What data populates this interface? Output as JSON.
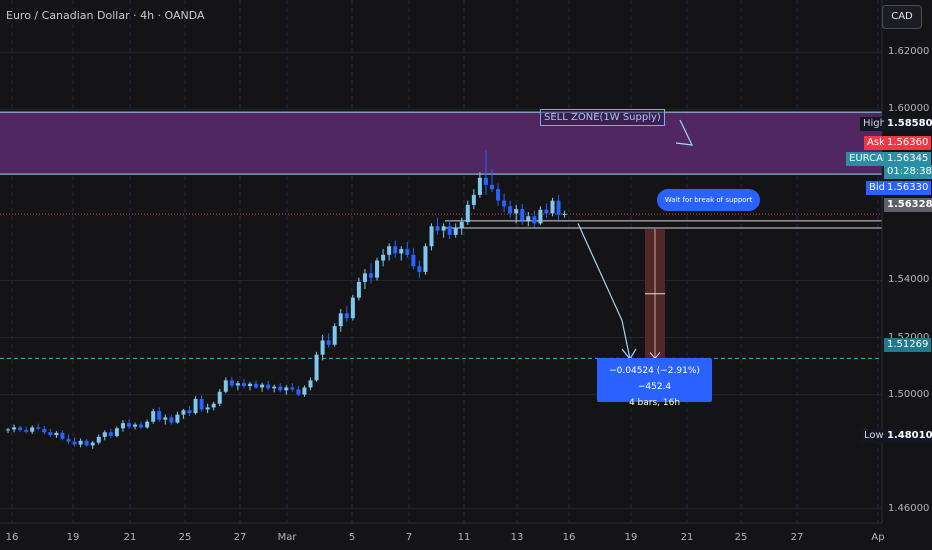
{
  "header": {
    "symbol_title": "Euro / Canadian Dollar · 4h · OANDA"
  },
  "currency_button": "CAD",
  "price_axis": {
    "ticks": [
      "1.62000",
      "1.60000",
      "1.54000",
      "1.52000",
      "1.50000",
      "1.46000"
    ],
    "tick_values": [
      1.62,
      1.6,
      1.54,
      1.52,
      1.5,
      1.46
    ]
  },
  "time_axis": {
    "labels": [
      "16",
      "19",
      "21",
      "25",
      "27",
      "Mar",
      "5",
      "7",
      "11",
      "13",
      "16",
      "19",
      "21",
      "25",
      "27",
      "Ap"
    ]
  },
  "price_tags": {
    "high": {
      "label": "High",
      "value": "1.58580",
      "color": "#131722"
    },
    "ask": {
      "label": "Ask",
      "value": "1.56360",
      "color": "#f23645"
    },
    "symbol": {
      "label": "EURCAD",
      "value": "1.56345",
      "countdown": "01:28:38",
      "color": "#2a8fa6"
    },
    "bid": {
      "label": "Bid",
      "value": "1.56330",
      "color": "#2962ff"
    },
    "last": {
      "value": "1.56328",
      "color": "#5d606b"
    },
    "target": {
      "value": "1.51269",
      "color": "#1f7a8c"
    },
    "low": {
      "label": "Low",
      "value": "1.48010",
      "color": "#131722"
    }
  },
  "annotations": {
    "sell_zone_label": "SELL ZONE(1W Supply)",
    "wait_label": "Wait for break of support",
    "measure_line1": "−0.04524 (−2.91%) −452.4",
    "measure_line2": "4 bars, 16h"
  },
  "colors": {
    "bullish": "#7ec8f0",
    "bearish": "#2962ff",
    "sell_zone": "#5a2a6e",
    "zone_line": "#9fd8f2",
    "target_line": "#2bb5c9"
  },
  "chart_data": {
    "type": "candlestick",
    "title": "Euro / Canadian Dollar · 4h · OANDA",
    "ylim": [
      1.455,
      1.632
    ],
    "x_labels": [
      "16",
      "19",
      "21",
      "25",
      "27",
      "Mar",
      "5",
      "7",
      "11",
      "13",
      "16",
      "19",
      "21",
      "25",
      "27",
      "Ap"
    ],
    "sell_zone": [
      1.5773,
      1.599
    ],
    "support_lines": [
      1.5609,
      1.5584
    ],
    "target_level": 1.51269,
    "last_price": 1.56328,
    "candles": [
      [
        1.4875,
        1.4883,
        1.4865,
        1.4878
      ],
      [
        1.4878,
        1.4895,
        1.4868,
        1.4885
      ],
      [
        1.4885,
        1.489,
        1.487,
        1.4876
      ],
      [
        1.4876,
        1.4888,
        1.4864,
        1.487
      ],
      [
        1.487,
        1.4892,
        1.4862,
        1.4885
      ],
      [
        1.4885,
        1.4898,
        1.4875,
        1.488
      ],
      [
        1.488,
        1.489,
        1.486,
        1.4868
      ],
      [
        1.4868,
        1.488,
        1.4852,
        1.4858
      ],
      [
        1.4858,
        1.4872,
        1.4848,
        1.4866
      ],
      [
        1.4866,
        1.4875,
        1.484,
        1.4845
      ],
      [
        1.4845,
        1.486,
        1.4828,
        1.4835
      ],
      [
        1.4835,
        1.485,
        1.4818,
        1.4825
      ],
      [
        1.4825,
        1.4846,
        1.4815,
        1.4838
      ],
      [
        1.4838,
        1.4845,
        1.4818,
        1.4822
      ],
      [
        1.4822,
        1.4838,
        1.481,
        1.4832
      ],
      [
        1.4832,
        1.486,
        1.4825,
        1.4852
      ],
      [
        1.4852,
        1.4875,
        1.484,
        1.4868
      ],
      [
        1.4868,
        1.488,
        1.4848,
        1.4855
      ],
      [
        1.4855,
        1.4888,
        1.485,
        1.4882
      ],
      [
        1.4882,
        1.491,
        1.487,
        1.49
      ],
      [
        1.49,
        1.4912,
        1.488,
        1.4888
      ],
      [
        1.4888,
        1.4902,
        1.4878,
        1.4895
      ],
      [
        1.4895,
        1.4905,
        1.488,
        1.4885
      ],
      [
        1.4885,
        1.4912,
        1.488,
        1.4905
      ],
      [
        1.4905,
        1.495,
        1.4898,
        1.4942
      ],
      [
        1.4942,
        1.4955,
        1.4905,
        1.4912
      ],
      [
        1.4912,
        1.493,
        1.4895,
        1.492
      ],
      [
        1.492,
        1.493,
        1.4895,
        1.4902
      ],
      [
        1.4902,
        1.494,
        1.4898,
        1.493
      ],
      [
        1.493,
        1.495,
        1.4915,
        1.4945
      ],
      [
        1.4945,
        1.496,
        1.4925,
        1.4935
      ],
      [
        1.4935,
        1.4995,
        1.493,
        1.4985
      ],
      [
        1.4985,
        1.4998,
        1.494,
        1.4948
      ],
      [
        1.4948,
        1.4968,
        1.4935,
        1.4955
      ],
      [
        1.4955,
        1.4975,
        1.4945,
        1.4968
      ],
      [
        1.4968,
        1.502,
        1.496,
        1.501
      ],
      [
        1.501,
        1.506,
        1.5005,
        1.505
      ],
      [
        1.505,
        1.5062,
        1.5025,
        1.5032
      ],
      [
        1.5032,
        1.5048,
        1.5015,
        1.504
      ],
      [
        1.504,
        1.5055,
        1.5022,
        1.503
      ],
      [
        1.503,
        1.5045,
        1.5015,
        1.5038
      ],
      [
        1.5038,
        1.505,
        1.502,
        1.5025
      ],
      [
        1.5025,
        1.5042,
        1.501,
        1.5035
      ],
      [
        1.5035,
        1.5048,
        1.5015,
        1.5022
      ],
      [
        1.5022,
        1.5035,
        1.5008,
        1.5028
      ],
      [
        1.5028,
        1.504,
        1.5008,
        1.5015
      ],
      [
        1.5015,
        1.5032,
        1.5,
        1.5025
      ],
      [
        1.5025,
        1.504,
        1.501,
        1.5018
      ],
      [
        1.5018,
        1.503,
        1.4995,
        1.5
      ],
      [
        1.5,
        1.5032,
        1.4992,
        1.5025
      ],
      [
        1.5025,
        1.506,
        1.5015,
        1.505
      ],
      [
        1.505,
        1.515,
        1.5045,
        1.514
      ],
      [
        1.514,
        1.521,
        1.512,
        1.519
      ],
      [
        1.519,
        1.5215,
        1.5165,
        1.5175
      ],
      [
        1.5175,
        1.525,
        1.5168,
        1.524
      ],
      [
        1.524,
        1.53,
        1.522,
        1.5285
      ],
      [
        1.5285,
        1.531,
        1.5255,
        1.5268
      ],
      [
        1.5268,
        1.535,
        1.526,
        1.534
      ],
      [
        1.534,
        1.541,
        1.533,
        1.5395
      ],
      [
        1.5395,
        1.544,
        1.537,
        1.5425
      ],
      [
        1.5425,
        1.546,
        1.539,
        1.541
      ],
      [
        1.541,
        1.548,
        1.54,
        1.547
      ],
      [
        1.547,
        1.551,
        1.545,
        1.549
      ],
      [
        1.549,
        1.553,
        1.547,
        1.552
      ],
      [
        1.552,
        1.554,
        1.548,
        1.5495
      ],
      [
        1.5495,
        1.552,
        1.547,
        1.551
      ],
      [
        1.551,
        1.5535,
        1.548,
        1.549
      ],
      [
        1.549,
        1.5515,
        1.544,
        1.545
      ],
      [
        1.545,
        1.547,
        1.541,
        1.543
      ],
      [
        1.543,
        1.553,
        1.542,
        1.552
      ],
      [
        1.552,
        1.56,
        1.5505,
        1.559
      ],
      [
        1.559,
        1.562,
        1.556,
        1.5575
      ],
      [
        1.5575,
        1.56,
        1.555,
        1.559
      ],
      [
        1.559,
        1.561,
        1.5545,
        1.556
      ],
      [
        1.556,
        1.56,
        1.555,
        1.5585
      ],
      [
        1.5585,
        1.562,
        1.556,
        1.5605
      ],
      [
        1.5605,
        1.568,
        1.5595,
        1.5665
      ],
      [
        1.5665,
        1.572,
        1.565,
        1.57
      ],
      [
        1.57,
        1.578,
        1.569,
        1.576
      ],
      [
        1.576,
        1.5858,
        1.57,
        1.5735
      ],
      [
        1.5735,
        1.579,
        1.571,
        1.572
      ],
      [
        1.572,
        1.574,
        1.566,
        1.568
      ],
      [
        1.568,
        1.5705,
        1.564,
        1.566
      ],
      [
        1.566,
        1.568,
        1.562,
        1.5635
      ],
      [
        1.5635,
        1.5665,
        1.56,
        1.565
      ],
      [
        1.565,
        1.5668,
        1.5595,
        1.561
      ],
      [
        1.561,
        1.564,
        1.559,
        1.5625
      ],
      [
        1.5625,
        1.5645,
        1.5585,
        1.56
      ],
      [
        1.56,
        1.566,
        1.5595,
        1.5648
      ],
      [
        1.5648,
        1.567,
        1.562,
        1.5635
      ],
      [
        1.5635,
        1.569,
        1.5625,
        1.568
      ],
      [
        1.568,
        1.57,
        1.561,
        1.563
      ],
      [
        1.563,
        1.5645,
        1.562,
        1.5633
      ]
    ],
    "projection_path": [
      [
        1.558,
        85
      ],
      [
        1.542,
        88
      ],
      [
        1.512,
        92
      ]
    ],
    "measurement": {
      "from": 1.558,
      "to": 1.51269,
      "bar_index": 95
    }
  }
}
